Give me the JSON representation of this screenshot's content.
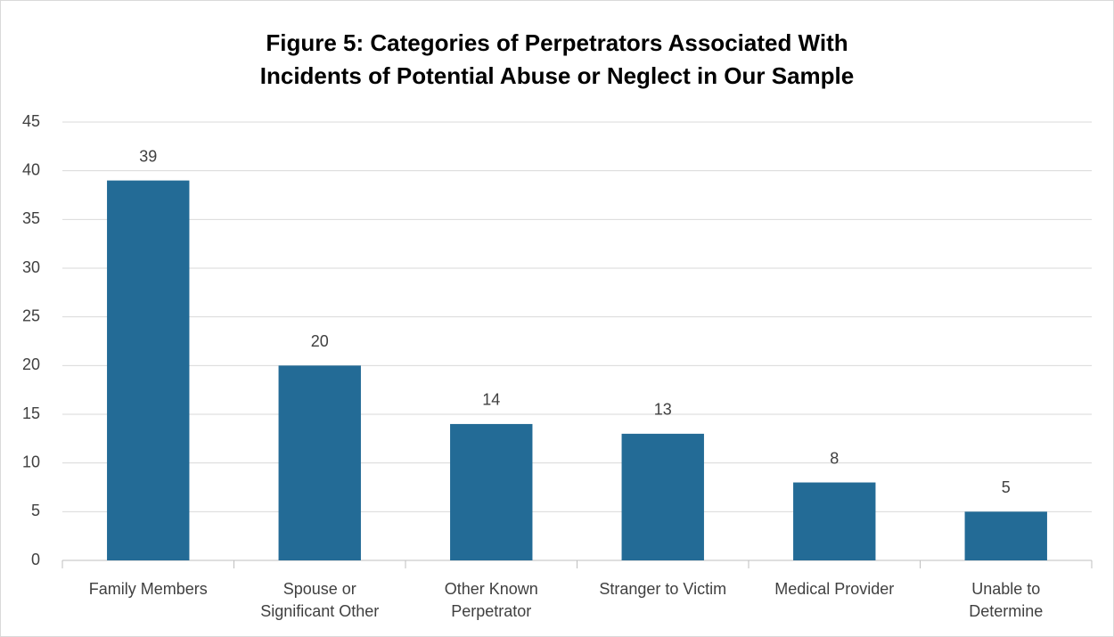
{
  "chart_data": {
    "type": "bar",
    "title": "Figure 5: Categories of Perpetrators Associated With\nIncidents of Potential Abuse or Neglect in Our Sample",
    "categories": [
      "Family Members",
      "Spouse or\nSignificant Other",
      "Other Known\nPerpetrator",
      "Stranger to Victim",
      "Medical Provider",
      "Unable to\nDetermine"
    ],
    "values": [
      39,
      20,
      14,
      13,
      8,
      5
    ],
    "color": "#236b96",
    "ylim": [
      0,
      45
    ],
    "yticks": [
      0,
      5,
      10,
      15,
      20,
      25,
      30,
      35,
      40,
      45
    ],
    "grid": true
  }
}
